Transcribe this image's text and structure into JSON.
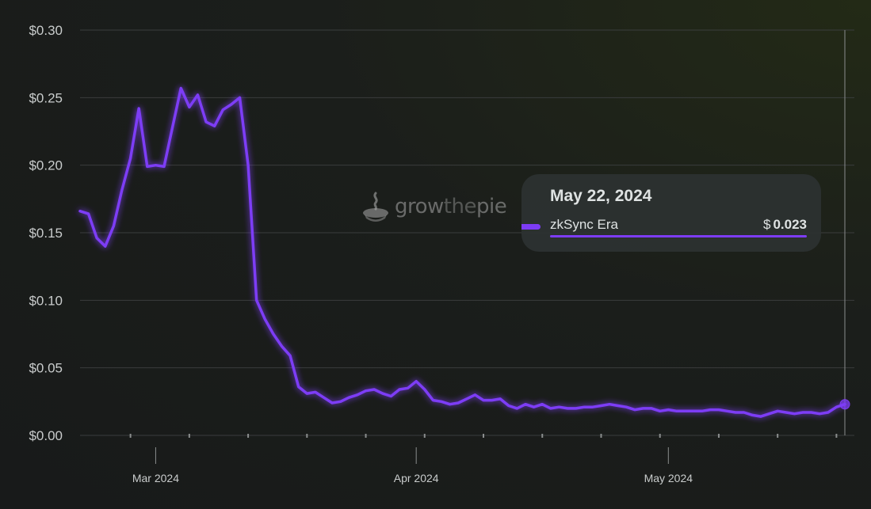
{
  "colors": {
    "series": "#7d3cf6",
    "grid": "#3a3d3d",
    "text": "#c9cccc"
  },
  "watermark": {
    "text_grow": "grow",
    "text_the": "the",
    "text_pie": "pie",
    "icon": "pie-logo-icon"
  },
  "tooltip": {
    "date": "May 22, 2024",
    "series_name": "zkSync Era",
    "currency": "$",
    "value": "0.023"
  },
  "chart_data": {
    "type": "line",
    "title": "",
    "xlabel": "",
    "ylabel": "",
    "ylim": [
      0,
      0.3
    ],
    "yticks": [
      0,
      0.05,
      0.1,
      0.15,
      0.2,
      0.25,
      0.3
    ],
    "ytick_labels": [
      "$0.00",
      "$0.05",
      "$0.10",
      "$0.15",
      "$0.20",
      "$0.25",
      "$0.30"
    ],
    "xlim": [
      "2024-02-21",
      "2024-05-22"
    ],
    "xtick_labels": [
      {
        "date": "2024-03-01",
        "label": "Mar 2024"
      },
      {
        "date": "2024-04-01",
        "label": "Apr 2024"
      },
      {
        "date": "2024-05-01",
        "label": "May 2024"
      }
    ],
    "grid": true,
    "legend": "none",
    "series": [
      {
        "name": "zkSync Era",
        "x": [
          "2024-02-21",
          "2024-02-22",
          "2024-02-23",
          "2024-02-24",
          "2024-02-25",
          "2024-02-26",
          "2024-02-27",
          "2024-02-28",
          "2024-02-29",
          "2024-03-01",
          "2024-03-02",
          "2024-03-03",
          "2024-03-04",
          "2024-03-05",
          "2024-03-06",
          "2024-03-07",
          "2024-03-08",
          "2024-03-09",
          "2024-03-10",
          "2024-03-11",
          "2024-03-12",
          "2024-03-13",
          "2024-03-14",
          "2024-03-15",
          "2024-03-16",
          "2024-03-17",
          "2024-03-18",
          "2024-03-19",
          "2024-03-20",
          "2024-03-21",
          "2024-03-22",
          "2024-03-23",
          "2024-03-24",
          "2024-03-25",
          "2024-03-26",
          "2024-03-27",
          "2024-03-28",
          "2024-03-29",
          "2024-03-30",
          "2024-03-31",
          "2024-04-01",
          "2024-04-02",
          "2024-04-03",
          "2024-04-04",
          "2024-04-05",
          "2024-04-06",
          "2024-04-07",
          "2024-04-08",
          "2024-04-09",
          "2024-04-10",
          "2024-04-11",
          "2024-04-12",
          "2024-04-13",
          "2024-04-14",
          "2024-04-15",
          "2024-04-16",
          "2024-04-17",
          "2024-04-18",
          "2024-04-19",
          "2024-04-20",
          "2024-04-21",
          "2024-04-22",
          "2024-04-23",
          "2024-04-24",
          "2024-04-25",
          "2024-04-26",
          "2024-04-27",
          "2024-04-28",
          "2024-04-29",
          "2024-04-30",
          "2024-05-01",
          "2024-05-02",
          "2024-05-03",
          "2024-05-04",
          "2024-05-05",
          "2024-05-06",
          "2024-05-07",
          "2024-05-08",
          "2024-05-09",
          "2024-05-10",
          "2024-05-11",
          "2024-05-12",
          "2024-05-13",
          "2024-05-14",
          "2024-05-15",
          "2024-05-16",
          "2024-05-17",
          "2024-05-18",
          "2024-05-19",
          "2024-05-20",
          "2024-05-21",
          "2024-05-22"
        ],
        "y": [
          0.166,
          0.164,
          0.146,
          0.14,
          0.155,
          0.182,
          0.205,
          0.242,
          0.199,
          0.2,
          0.199,
          0.228,
          0.257,
          0.243,
          0.252,
          0.232,
          0.229,
          0.241,
          0.245,
          0.25,
          0.2,
          0.1,
          0.086,
          0.075,
          0.066,
          0.059,
          0.036,
          0.031,
          0.032,
          0.028,
          0.024,
          0.025,
          0.028,
          0.03,
          0.033,
          0.034,
          0.031,
          0.029,
          0.034,
          0.035,
          0.04,
          0.034,
          0.026,
          0.025,
          0.023,
          0.024,
          0.027,
          0.03,
          0.026,
          0.026,
          0.027,
          0.022,
          0.02,
          0.023,
          0.021,
          0.023,
          0.02,
          0.021,
          0.02,
          0.02,
          0.021,
          0.021,
          0.022,
          0.023,
          0.022,
          0.021,
          0.019,
          0.02,
          0.02,
          0.018,
          0.019,
          0.018,
          0.018,
          0.018,
          0.018,
          0.019,
          0.019,
          0.018,
          0.017,
          0.017,
          0.015,
          0.014,
          0.016,
          0.018,
          0.017,
          0.016,
          0.017,
          0.017,
          0.016,
          0.017,
          0.021,
          0.023
        ]
      }
    ]
  }
}
